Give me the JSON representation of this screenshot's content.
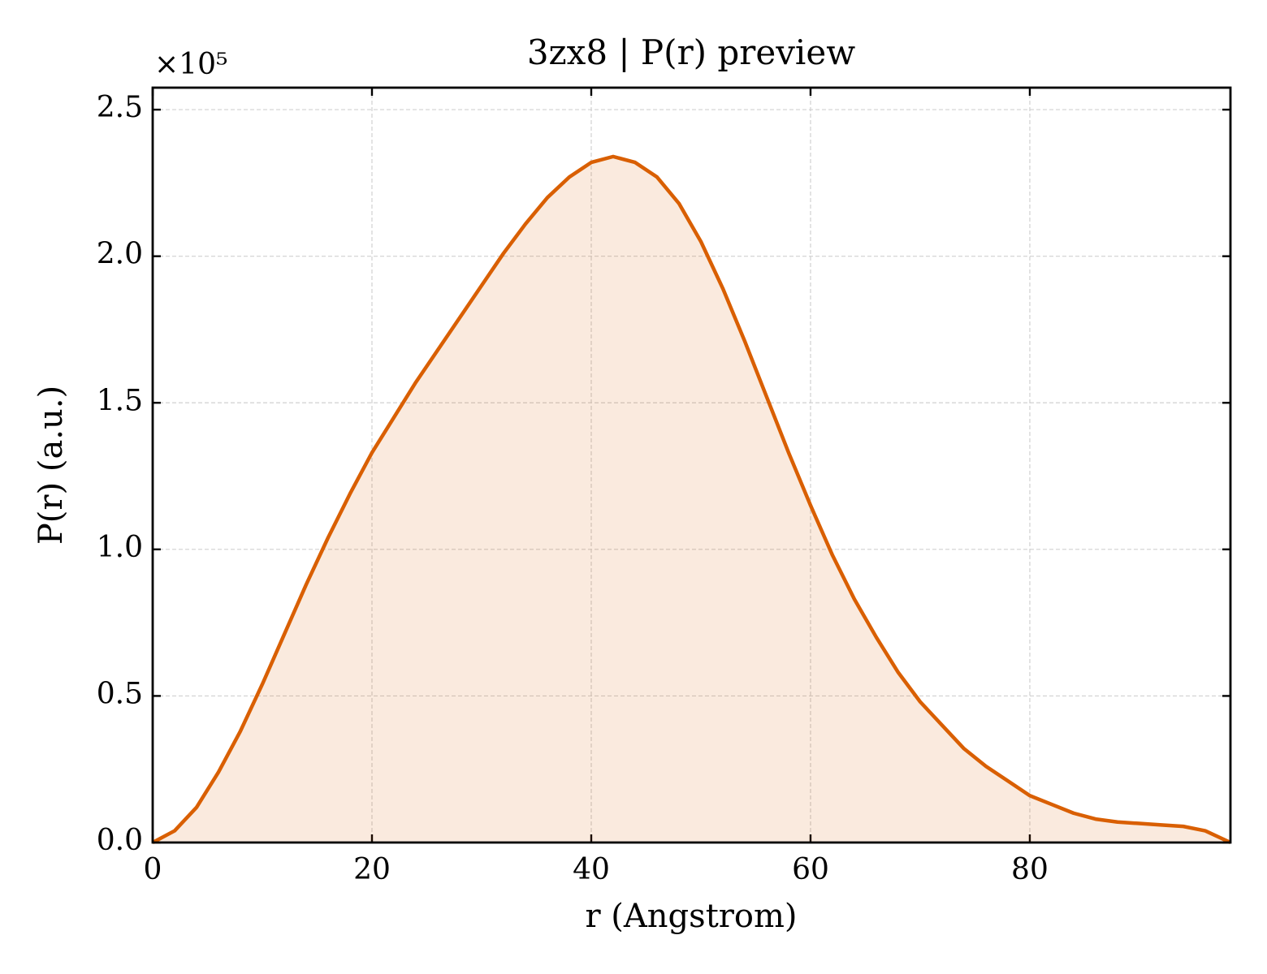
{
  "chart_data": {
    "type": "line",
    "title": "3zx8 | P(r) preview",
    "x_label": "r (Angstrom)",
    "y_label": "P(r) (a.u.)",
    "y_offset_label": "×10⁵",
    "x": [
      0,
      2,
      4,
      6,
      8,
      10,
      12,
      14,
      16,
      18,
      20,
      22,
      24,
      26,
      28,
      30,
      32,
      34,
      36,
      38,
      40,
      42,
      44,
      46,
      48,
      50,
      52,
      54,
      56,
      58,
      60,
      62,
      64,
      66,
      68,
      70,
      72,
      74,
      76,
      78,
      80,
      82,
      84,
      86,
      88,
      90,
      92,
      94,
      96,
      98.3
    ],
    "series": [
      {
        "name": "P(r)",
        "color": "#d95f02",
        "fill": true,
        "values": [
          0,
          0.04,
          0.12,
          0.24,
          0.38,
          0.54,
          0.71,
          0.88,
          1.04,
          1.19,
          1.33,
          1.45,
          1.57,
          1.68,
          1.79,
          1.9,
          2.01,
          2.11,
          2.2,
          2.27,
          2.32,
          2.34,
          2.32,
          2.27,
          2.18,
          2.05,
          1.89,
          1.71,
          1.52,
          1.33,
          1.15,
          0.98,
          0.83,
          0.7,
          0.58,
          0.48,
          0.4,
          0.32,
          0.26,
          0.21,
          0.16,
          0.13,
          0.1,
          0.08,
          0.07,
          0.065,
          0.06,
          0.055,
          0.04,
          0
        ]
      }
    ],
    "xlim": [
      0,
      98.3
    ],
    "ylim": [
      0,
      2.575
    ],
    "xticks": [
      0,
      20,
      40,
      60,
      80
    ],
    "yticks": [
      {
        "value": 0,
        "label": "0.0"
      },
      0.5,
      {
        "value": 1,
        "label": "1.0"
      },
      1.5,
      {
        "value": 2,
        "label": "2.0"
      },
      2.5
    ],
    "grid": true
  }
}
